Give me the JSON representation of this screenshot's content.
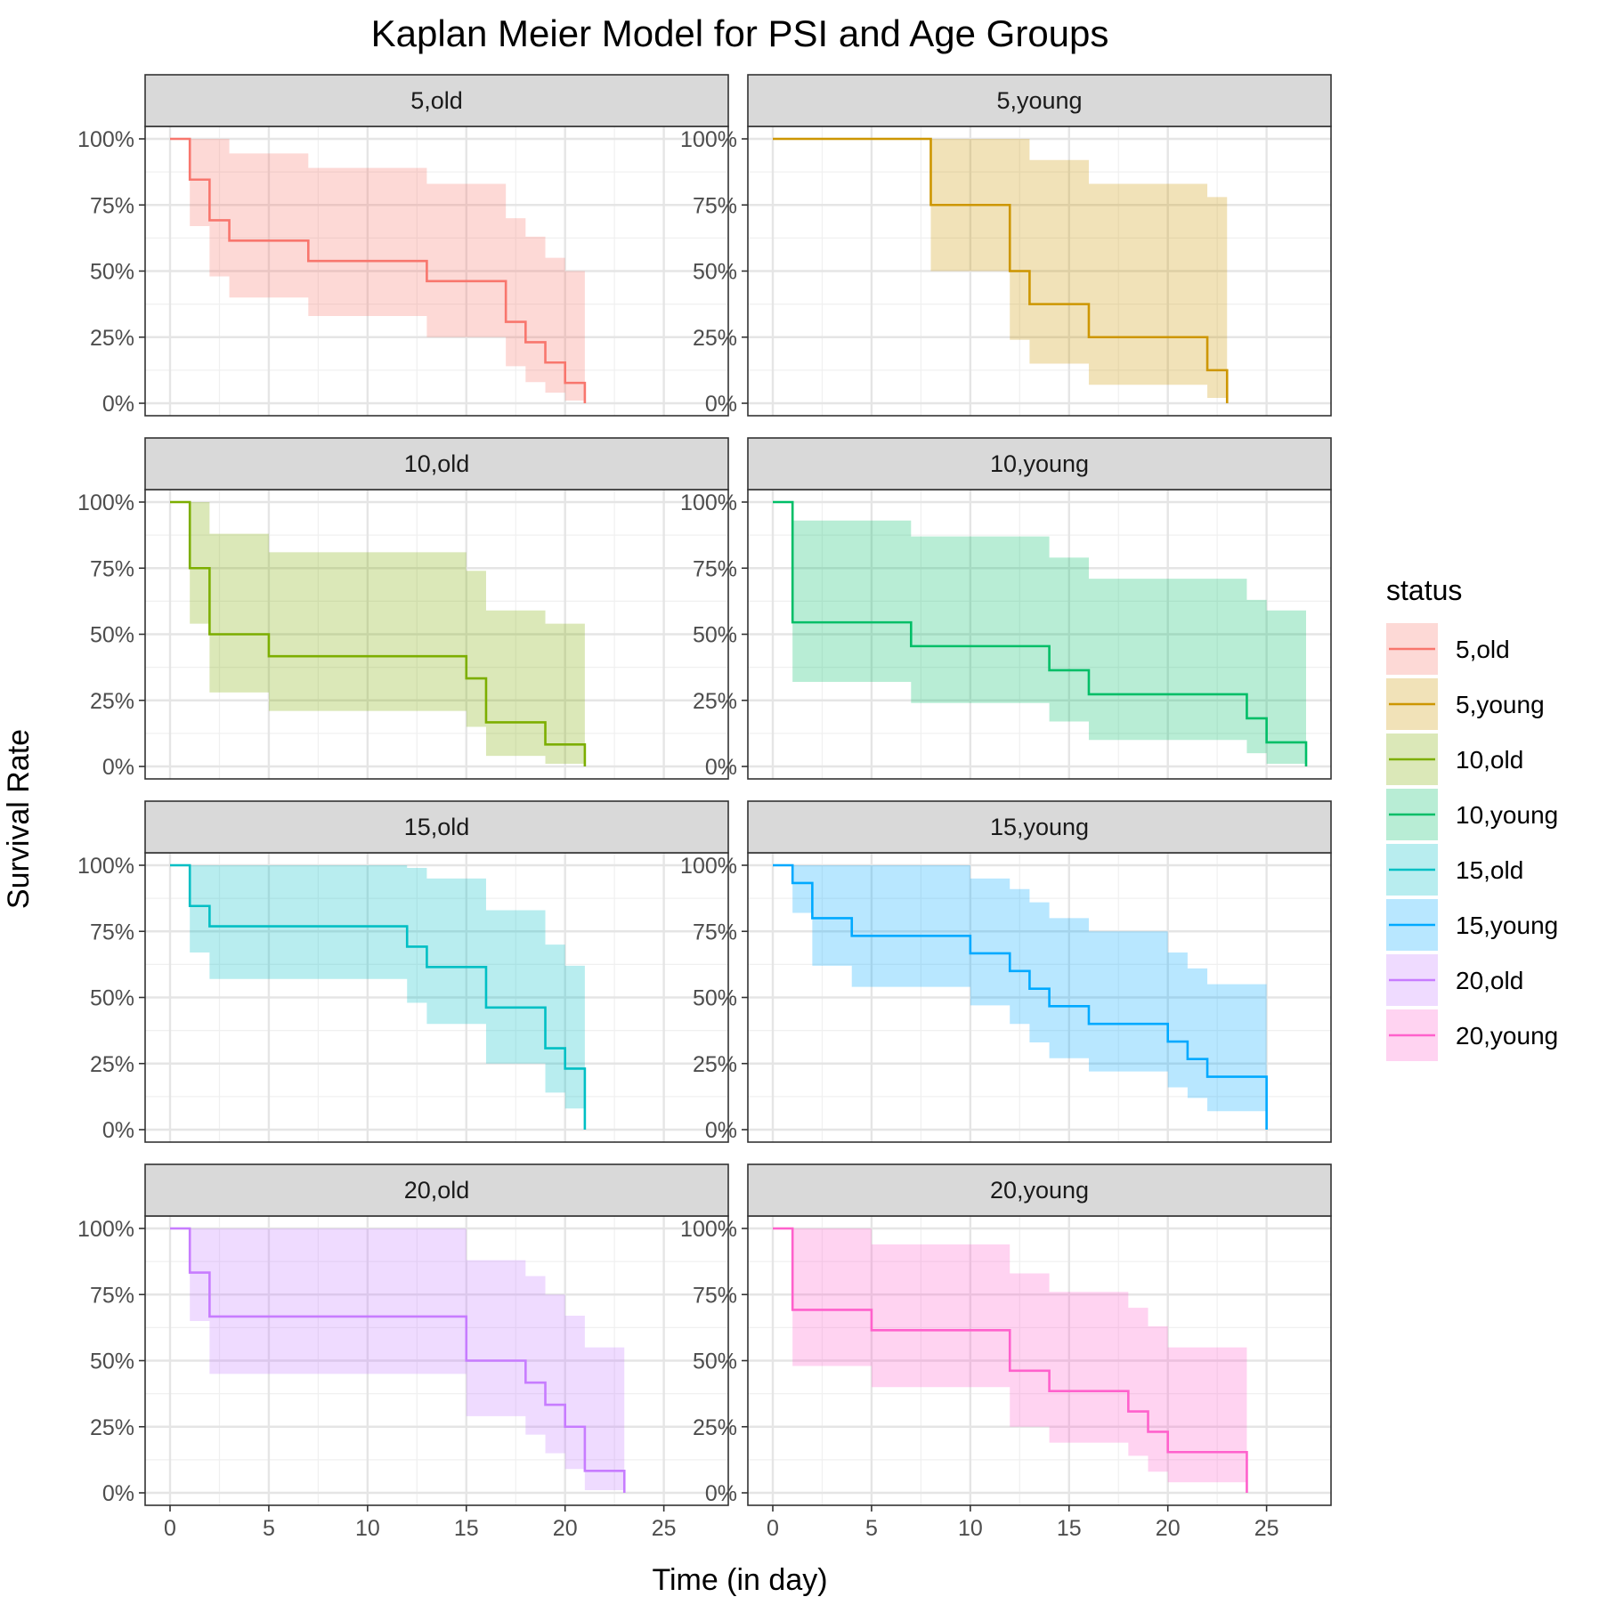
{
  "chart_data": {
    "type": "line",
    "subtype": "kaplan-meier step curves with confidence bands, faceted",
    "title": "Kaplan Meier Model for PSI and Age Groups",
    "xlabel": "Time (in day)",
    "ylabel": "Survival Rate",
    "xlim": [
      0,
      27
    ],
    "ylim": [
      0,
      1
    ],
    "x_ticks": [
      0,
      5,
      10,
      15,
      20,
      25
    ],
    "y_ticks": [
      0,
      0.25,
      0.5,
      0.75,
      1
    ],
    "y_tick_labels": [
      "0%",
      "25%",
      "50%",
      "75%",
      "100%"
    ],
    "x_tick_labels": [
      "0",
      "5",
      "10",
      "15",
      "20",
      "25"
    ],
    "grid": true,
    "legend": {
      "title": "status",
      "position": "right"
    },
    "series": [
      {
        "name": "5,old",
        "color": "#F8766D",
        "steps": [
          [
            0,
            1
          ],
          [
            1,
            0.846
          ],
          [
            2,
            0.692
          ],
          [
            3,
            0.615
          ],
          [
            7,
            0.538
          ],
          [
            13,
            0.462
          ],
          [
            17,
            0.308
          ],
          [
            18,
            0.231
          ],
          [
            19,
            0.154
          ],
          [
            20,
            0.077
          ],
          [
            21,
            0
          ]
        ],
        "ci": [
          [
            0,
            1,
            1
          ],
          [
            1,
            1,
            0.67
          ],
          [
            2,
            1,
            0.48
          ],
          [
            3,
            0.945,
            0.4
          ],
          [
            7,
            0.89,
            0.33
          ],
          [
            13,
            0.83,
            0.25
          ],
          [
            17,
            0.7,
            0.14
          ],
          [
            18,
            0.63,
            0.08
          ],
          [
            19,
            0.55,
            0.04
          ],
          [
            20,
            0.5,
            0.01
          ],
          [
            21,
            0.5,
            0.01
          ]
        ]
      },
      {
        "name": "5,young",
        "color": "#CD9600",
        "steps": [
          [
            0,
            1
          ],
          [
            8,
            0.75
          ],
          [
            12,
            0.5
          ],
          [
            13,
            0.375
          ],
          [
            16,
            0.25
          ],
          [
            22,
            0.125
          ],
          [
            23,
            0
          ]
        ],
        "ci": [
          [
            0,
            1,
            1
          ],
          [
            8,
            1,
            0.5
          ],
          [
            12,
            1,
            0.24
          ],
          [
            13,
            0.92,
            0.15
          ],
          [
            16,
            0.83,
            0.07
          ],
          [
            22,
            0.78,
            0.02
          ],
          [
            23,
            0.78,
            0.02
          ]
        ]
      },
      {
        "name": "10,old",
        "color": "#7CAE00",
        "steps": [
          [
            0,
            1
          ],
          [
            1,
            0.75
          ],
          [
            2,
            0.5
          ],
          [
            5,
            0.417
          ],
          [
            15,
            0.333
          ],
          [
            16,
            0.167
          ],
          [
            19,
            0.083
          ],
          [
            21,
            0
          ]
        ],
        "ci": [
          [
            0,
            1,
            1
          ],
          [
            1,
            1,
            0.54
          ],
          [
            2,
            0.88,
            0.28
          ],
          [
            5,
            0.81,
            0.21
          ],
          [
            15,
            0.74,
            0.15
          ],
          [
            16,
            0.59,
            0.04
          ],
          [
            19,
            0.54,
            0.01
          ],
          [
            21,
            0.54,
            0.01
          ]
        ]
      },
      {
        "name": "10,young",
        "color": "#00BE67",
        "steps": [
          [
            0,
            1
          ],
          [
            1,
            0.545
          ],
          [
            7,
            0.455
          ],
          [
            14,
            0.364
          ],
          [
            16,
            0.273
          ],
          [
            24,
            0.182
          ],
          [
            25,
            0.091
          ],
          [
            27,
            0
          ]
        ],
        "ci": [
          [
            0,
            1,
            1
          ],
          [
            1,
            0.93,
            0.32
          ],
          [
            7,
            0.87,
            0.24
          ],
          [
            14,
            0.79,
            0.17
          ],
          [
            16,
            0.71,
            0.1
          ],
          [
            24,
            0.63,
            0.05
          ],
          [
            25,
            0.59,
            0.01
          ],
          [
            27,
            0.59,
            0.01
          ]
        ]
      },
      {
        "name": "15,old",
        "color": "#00BFC4",
        "steps": [
          [
            0,
            1
          ],
          [
            1,
            0.846
          ],
          [
            2,
            0.769
          ],
          [
            12,
            0.692
          ],
          [
            13,
            0.615
          ],
          [
            16,
            0.462
          ],
          [
            19,
            0.308
          ],
          [
            20,
            0.231
          ],
          [
            21,
            0
          ]
        ],
        "ci": [
          [
            0,
            1,
            1
          ],
          [
            1,
            1,
            0.67
          ],
          [
            2,
            1,
            0.57
          ],
          [
            12,
            0.99,
            0.48
          ],
          [
            13,
            0.95,
            0.4
          ],
          [
            16,
            0.83,
            0.25
          ],
          [
            19,
            0.7,
            0.14
          ],
          [
            20,
            0.62,
            0.08
          ],
          [
            21,
            0.62,
            0.08
          ]
        ]
      },
      {
        "name": "15,young",
        "color": "#00A9FF",
        "steps": [
          [
            0,
            1
          ],
          [
            1,
            0.933
          ],
          [
            2,
            0.8
          ],
          [
            4,
            0.733
          ],
          [
            10,
            0.667
          ],
          [
            12,
            0.6
          ],
          [
            13,
            0.533
          ],
          [
            14,
            0.467
          ],
          [
            16,
            0.4
          ],
          [
            20,
            0.333
          ],
          [
            21,
            0.267
          ],
          [
            22,
            0.2
          ],
          [
            25,
            0
          ]
        ],
        "ci": [
          [
            0,
            1,
            1
          ],
          [
            1,
            1,
            0.82
          ],
          [
            2,
            1,
            0.62
          ],
          [
            4,
            1,
            0.54
          ],
          [
            10,
            0.95,
            0.47
          ],
          [
            12,
            0.91,
            0.4
          ],
          [
            13,
            0.86,
            0.33
          ],
          [
            14,
            0.8,
            0.27
          ],
          [
            16,
            0.75,
            0.22
          ],
          [
            20,
            0.67,
            0.16
          ],
          [
            21,
            0.61,
            0.12
          ],
          [
            22,
            0.55,
            0.07
          ],
          [
            25,
            0.55,
            0.07
          ]
        ]
      },
      {
        "name": "20,old",
        "color": "#C77CFF",
        "steps": [
          [
            0,
            1
          ],
          [
            1,
            0.833
          ],
          [
            2,
            0.667
          ],
          [
            15,
            0.5
          ],
          [
            18,
            0.417
          ],
          [
            19,
            0.333
          ],
          [
            20,
            0.25
          ],
          [
            21,
            0.083
          ],
          [
            23,
            0
          ]
        ],
        "ci": [
          [
            0,
            1,
            1
          ],
          [
            1,
            1,
            0.65
          ],
          [
            2,
            1,
            0.45
          ],
          [
            15,
            0.88,
            0.29
          ],
          [
            18,
            0.82,
            0.22
          ],
          [
            19,
            0.75,
            0.15
          ],
          [
            20,
            0.67,
            0.09
          ],
          [
            21,
            0.55,
            0.01
          ],
          [
            23,
            0.55,
            0.01
          ]
        ]
      },
      {
        "name": "20,young",
        "color": "#FF61CC",
        "steps": [
          [
            0,
            1
          ],
          [
            1,
            0.692
          ],
          [
            5,
            0.615
          ],
          [
            12,
            0.462
          ],
          [
            14,
            0.385
          ],
          [
            18,
            0.308
          ],
          [
            19,
            0.231
          ],
          [
            20,
            0.154
          ],
          [
            24,
            0
          ]
        ],
        "ci": [
          [
            0,
            1,
            1
          ],
          [
            1,
            1,
            0.48
          ],
          [
            5,
            0.94,
            0.4
          ],
          [
            12,
            0.83,
            0.25
          ],
          [
            14,
            0.76,
            0.19
          ],
          [
            18,
            0.7,
            0.14
          ],
          [
            19,
            0.63,
            0.08
          ],
          [
            20,
            0.55,
            0.04
          ],
          [
            24,
            0.55,
            0.04
          ]
        ]
      }
    ]
  }
}
